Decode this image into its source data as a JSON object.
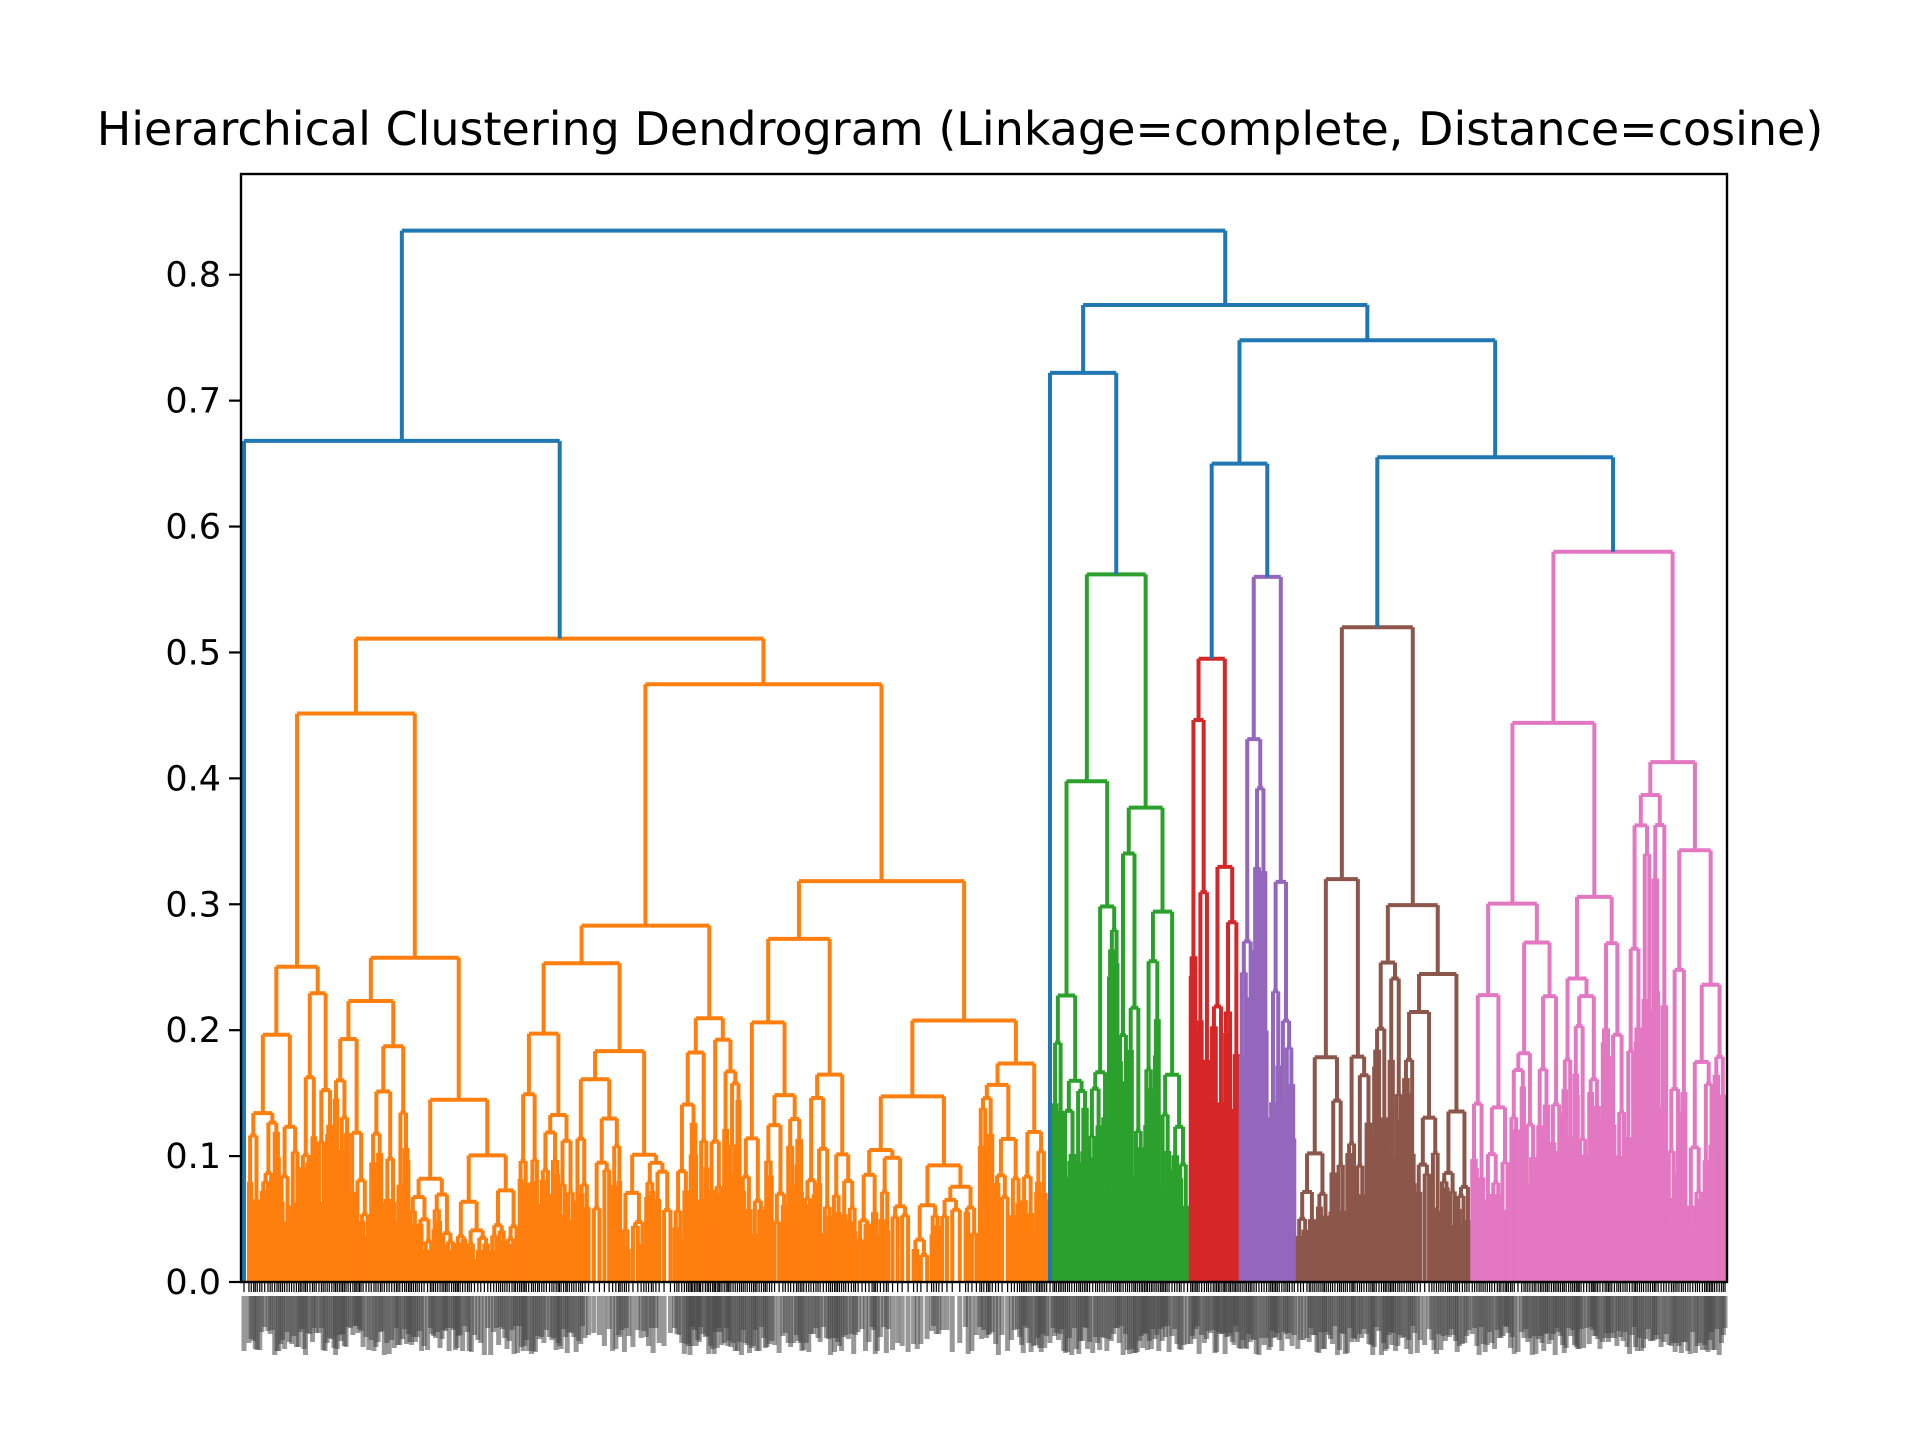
{
  "chart_data": {
    "type": "dendrogram",
    "title": "Hierarchical Clustering Dendrogram (Linkage=complete, Distance=cosine)",
    "xlabel": "",
    "ylabel": "",
    "ylim": [
      0.0,
      0.88
    ],
    "yticks": [
      "0.0",
      "0.1",
      "0.2",
      "0.3",
      "0.4",
      "0.5",
      "0.6",
      "0.7",
      "0.8"
    ],
    "leaf_labels_legible": false,
    "colors": {
      "link": "#1f77b4",
      "orange": "#ff7f0e",
      "green": "#2ca02c",
      "red": "#d62728",
      "purple": "#9467bd",
      "brown": "#8c564b",
      "pink": "#e377c2"
    },
    "clusters": [
      {
        "color": "orange",
        "height": 0.511
      },
      {
        "color": "green",
        "height": 0.562
      },
      {
        "color": "red",
        "height": 0.495
      },
      {
        "color": "purple",
        "height": 0.56
      },
      {
        "color": "brown",
        "height": 0.52
      },
      {
        "color": "pink",
        "height": 0.58
      }
    ],
    "top_merges": [
      {
        "height": 0.835,
        "children": [
          "left group",
          "right group"
        ]
      },
      {
        "height": 0.668,
        "children": [
          "first leaf",
          "orange cluster"
        ]
      },
      {
        "height": 0.776,
        "children": [
          "green branch",
          "red/purple/brown/pink branch"
        ]
      },
      {
        "height": 0.722,
        "children": [
          "single leaf",
          "green cluster"
        ]
      },
      {
        "height": 0.748,
        "children": [
          "red/purple branch",
          "brown/pink branch"
        ]
      },
      {
        "height": 0.65,
        "children": [
          "red cluster",
          "purple cluster"
        ]
      },
      {
        "height": 0.655,
        "children": [
          "brown cluster",
          "pink cluster"
        ]
      }
    ]
  }
}
